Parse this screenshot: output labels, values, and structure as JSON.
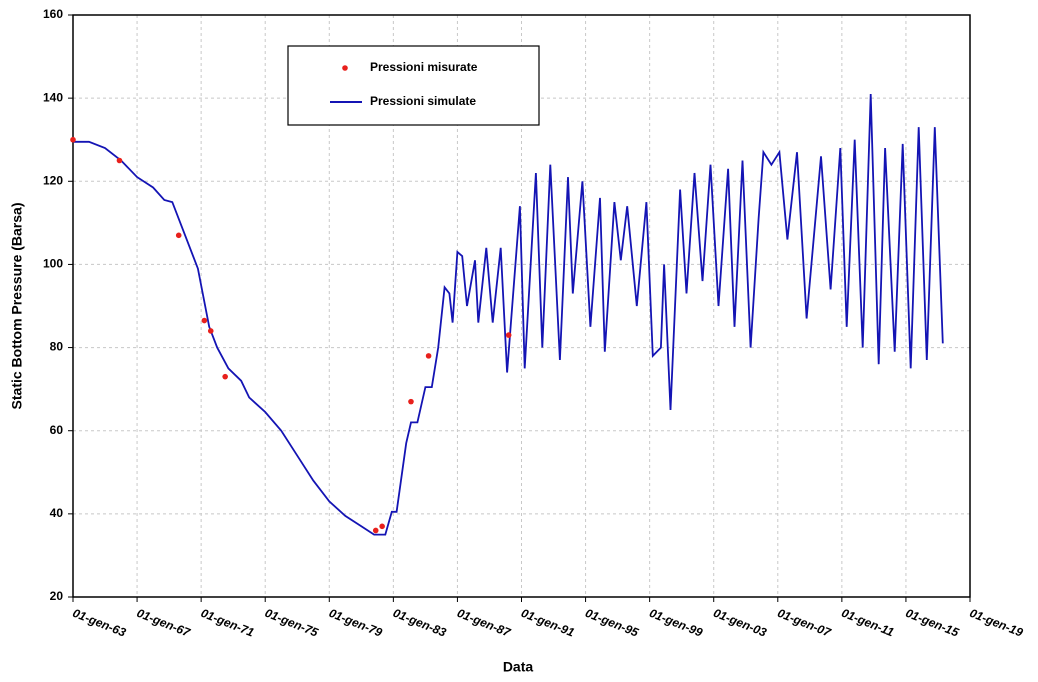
{
  "chart_data": {
    "type": "line",
    "xlabel": "Data",
    "ylabel": "Static Bottom Pressure (Barsa)",
    "xlim": [
      1963,
      2019
    ],
    "xticks": [
      {
        "value": 1963,
        "label": "01-gen-63"
      },
      {
        "value": 1967,
        "label": "01-gen-67"
      },
      {
        "value": 1971,
        "label": "01-gen-71"
      },
      {
        "value": 1975,
        "label": "01-gen-75"
      },
      {
        "value": 1979,
        "label": "01-gen-79"
      },
      {
        "value": 1983,
        "label": "01-gen-83"
      },
      {
        "value": 1987,
        "label": "01-gen-87"
      },
      {
        "value": 1991,
        "label": "01-gen-91"
      },
      {
        "value": 1995,
        "label": "01-gen-95"
      },
      {
        "value": 1999,
        "label": "01-gen-99"
      },
      {
        "value": 2003,
        "label": "01-gen-03"
      },
      {
        "value": 2007,
        "label": "01-gen-07"
      },
      {
        "value": 2011,
        "label": "01-gen-11"
      },
      {
        "value": 2015,
        "label": "01-gen-15"
      },
      {
        "value": 2019,
        "label": "01-gen-19"
      }
    ],
    "ylim": [
      20,
      160
    ],
    "yticks": [
      20,
      40,
      60,
      80,
      100,
      120,
      140,
      160
    ],
    "grid": true,
    "legend": "top",
    "series": [
      {
        "name": "Pressioni misurate",
        "kind": "scatter",
        "color": "#e8201c",
        "x": [
          1963.0,
          1965.9,
          1969.6,
          1971.2,
          1971.6,
          1972.5,
          1981.9,
          1982.3,
          1984.1,
          1985.2,
          1990.2
        ],
        "values": [
          130,
          125,
          107,
          86.5,
          84,
          73,
          36,
          37,
          67,
          78,
          83
        ]
      },
      {
        "name": "Pressioni simulate",
        "kind": "line",
        "color": "#1414b4",
        "x": [
          1963,
          1964,
          1965,
          1966,
          1967,
          1968,
          1968.7,
          1969.2,
          1970,
          1970.8,
          1971.5,
          1972,
          1972.7,
          1973.5,
          1974,
          1975,
          1976,
          1977,
          1978,
          1979,
          1980,
          1981,
          1981.8,
          1982.5,
          1982.9,
          1983.2,
          1983.8,
          1984.1,
          1984.5,
          1985,
          1985.4,
          1985.8,
          1986.2,
          1986.5,
          1986.7,
          1987,
          1987.3,
          1987.6,
          1988.1,
          1988.3,
          1988.8,
          1989.2,
          1989.7,
          1990.1,
          1990.9,
          1991.2,
          1991.9,
          1992.3,
          1992.8,
          1993.4,
          1993.9,
          1994.2,
          1994.8,
          1995.3,
          1995.9,
          1996.2,
          1996.8,
          1997.2,
          1997.6,
          1998.2,
          1998.8,
          1999.2,
          1999.7,
          1999.9,
          2000.3,
          2000.9,
          2001.3,
          2001.8,
          2002.3,
          2002.8,
          2003.3,
          2003.9,
          2004.3,
          2004.8,
          2005.3,
          2005.8,
          2006.1,
          2006.6,
          2007.1,
          2007.6,
          2008.2,
          2008.8,
          2009.7,
          2010.3,
          2010.9,
          2011.3,
          2011.8,
          2012.3,
          2012.8,
          2013.3,
          2013.7,
          2014.3,
          2014.8,
          2015.3,
          2015.8,
          2016.3,
          2016.8,
          2017.3
        ],
        "values": [
          129.5,
          129.5,
          128,
          125,
          121,
          118.5,
          115.5,
          115,
          107,
          99,
          85,
          80,
          75,
          72,
          68,
          64.5,
          60,
          54,
          48,
          43,
          39.5,
          37,
          35,
          35,
          40.5,
          40.5,
          57,
          62,
          62,
          70.5,
          70.5,
          80,
          94.5,
          93,
          86,
          103,
          102,
          90,
          101,
          86,
          104,
          86,
          104,
          74,
          114,
          75,
          122,
          80,
          124,
          77,
          121,
          93,
          120,
          85,
          116,
          79,
          115,
          101,
          114,
          90,
          115,
          78,
          80,
          100,
          65,
          118,
          93,
          122,
          96,
          124,
          90,
          123,
          85,
          125,
          80,
          111,
          127,
          124,
          127,
          106,
          127,
          87,
          126,
          94,
          128,
          85,
          130,
          80,
          141,
          76,
          128,
          79,
          129,
          75,
          133,
          77,
          133,
          81
        ]
      }
    ]
  }
}
